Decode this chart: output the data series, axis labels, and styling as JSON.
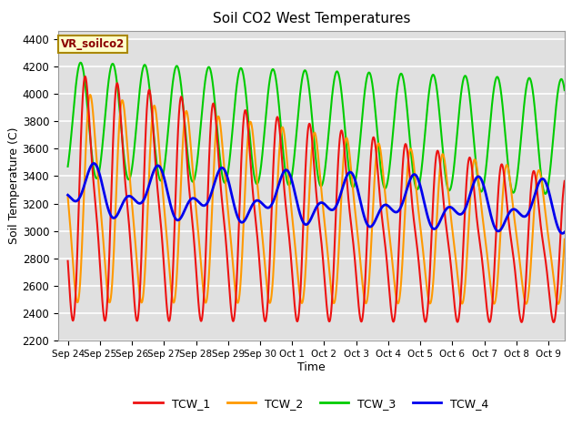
{
  "title": "Soil CO2 West Temperatures",
  "xlabel": "Time",
  "ylabel": "Soil Temperature (C)",
  "ylim": [
    2200,
    4460
  ],
  "xlim": [
    -0.3,
    15.5
  ],
  "annotation": "VR_soilco2",
  "bg_color": "#e0e0e0",
  "grid_color": "white",
  "colors": {
    "TCW_1": "#ee1111",
    "TCW_2": "#ff9900",
    "TCW_3": "#00cc00",
    "TCW_4": "#0000ee"
  },
  "xtick_labels": [
    "Sep 24",
    "Sep 25",
    "Sep 26",
    "Sep 27",
    "Sep 28",
    "Sep 29",
    "Sep 30",
    "Oct 1",
    "Oct 2",
    "Oct 3",
    "Oct 4",
    "Oct 5",
    "Oct 6",
    "Oct 7",
    "Oct 8",
    "Oct 9"
  ],
  "ytick_vals": [
    2200,
    2400,
    2600,
    2800,
    3000,
    3200,
    3400,
    3600,
    3800,
    4000,
    4200,
    4400
  ],
  "legend_labels": [
    "TCW_1",
    "TCW_2",
    "TCW_3",
    "TCW_4"
  ]
}
